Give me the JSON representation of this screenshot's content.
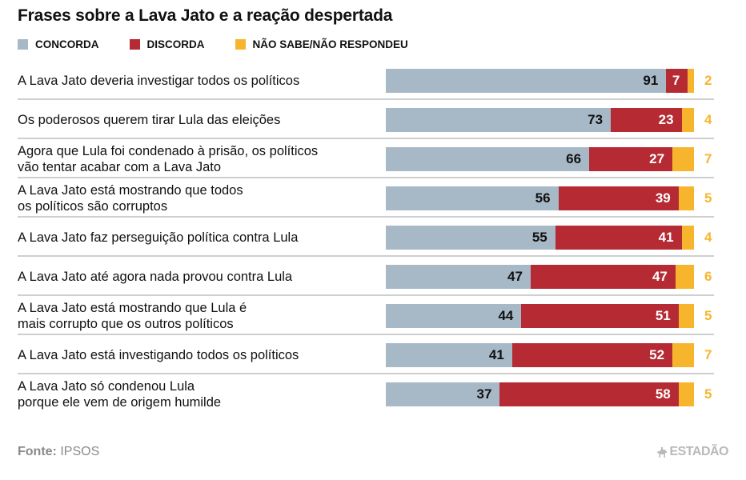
{
  "title": "Frases sobre a Lava Jato e a reação despertada",
  "legend": [
    {
      "key": "concorda",
      "label": "CONCORDA",
      "color": "#a7b8c6"
    },
    {
      "key": "discorda",
      "label": "DISCORDA",
      "color": "#b52a33"
    },
    {
      "key": "nao_sabe",
      "label": "NÃO SABE/NÃO RESPONDEU",
      "color": "#f7b52e"
    }
  ],
  "chart_data": {
    "type": "bar",
    "stacked": true,
    "orientation": "horizontal",
    "title": "Frases sobre a Lava Jato e a reação despertada",
    "unit": "%",
    "xlim": [
      0,
      100
    ],
    "legend_position": "top-left",
    "categories": [
      "A Lava Jato deveria investigar todos os políticos",
      "Os poderosos querem tirar Lula das eleições",
      "Agora que Lula foi condenado à prisão, os políticos vão tentar acabar com a Lava Jato",
      "A Lava Jato está mostrando que todos os políticos são corruptos",
      "A Lava Jato faz perseguição política contra Lula",
      "A Lava Jato até agora nada provou contra Lula",
      "A Lava Jato está mostrando que Lula é mais corrupto que os outros políticos",
      "A Lava Jato está investigando todos os políticos",
      "A Lava Jato só condenou Lula porque ele vem de origem humilde"
    ],
    "category_lines": [
      [
        "A Lava Jato deveria investigar todos os políticos"
      ],
      [
        "Os poderosos querem tirar Lula das eleições"
      ],
      [
        "Agora que Lula foi condenado à prisão, os políticos",
        "vão tentar acabar com a Lava Jato"
      ],
      [
        "A Lava Jato está mostrando que todos",
        "os políticos são corruptos"
      ],
      [
        "A Lava Jato faz perseguição política contra Lula"
      ],
      [
        "A Lava Jato até agora nada provou contra Lula"
      ],
      [
        "A Lava Jato está mostrando que Lula é",
        "mais corrupto que os outros políticos"
      ],
      [
        "A Lava Jato está investigando todos os políticos"
      ],
      [
        "A Lava Jato só condenou Lula",
        "porque ele vem de origem humilde"
      ]
    ],
    "series": [
      {
        "name": "CONCORDA",
        "color": "#a7b8c6",
        "values": [
          91,
          73,
          66,
          56,
          55,
          47,
          44,
          41,
          37
        ]
      },
      {
        "name": "DISCORDA",
        "color": "#b52a33",
        "values": [
          7,
          23,
          27,
          39,
          41,
          47,
          51,
          52,
          58
        ]
      },
      {
        "name": "NÃO SABE/NÃO RESPONDEU",
        "color": "#f7b52e",
        "values": [
          2,
          4,
          7,
          5,
          4,
          6,
          5,
          7,
          5
        ]
      }
    ]
  },
  "footer": {
    "source_label": "Fonte:",
    "source_value": "IPSOS",
    "brand": "ESTADÃO",
    "brand_icon": "horseman-icon"
  }
}
